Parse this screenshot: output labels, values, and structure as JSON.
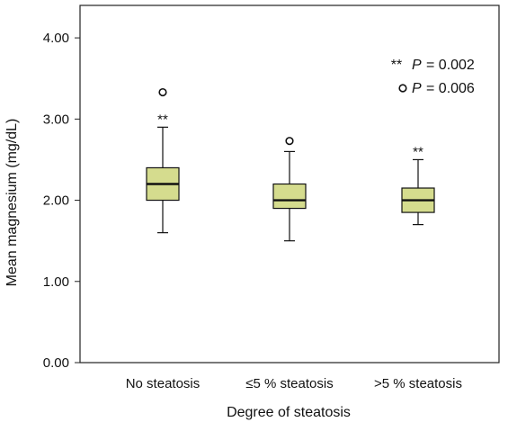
{
  "chart_data": {
    "type": "box",
    "xlabel": "Degree of steatosis",
    "ylabel": "Mean magnesium (mg/dL)",
    "ylim": [
      0,
      4.4
    ],
    "yticks": [
      "0.00",
      "1.00",
      "2.00",
      "3.00",
      "4.00"
    ],
    "ytick_values": [
      0,
      1,
      2,
      3,
      4
    ],
    "grid": false,
    "box_color": "#d5dc8e",
    "categories": [
      "No steatosis",
      "≤5 % steatosis",
      ">5 % steatosis"
    ],
    "boxes": [
      {
        "category": "No steatosis",
        "whisker_low": 1.6,
        "q1": 2.0,
        "median": 2.2,
        "q3": 2.4,
        "whisker_high": 2.9,
        "outliers": [
          3.33
        ],
        "marker": "**"
      },
      {
        "category": "≤5 % steatosis",
        "whisker_low": 1.5,
        "q1": 1.9,
        "median": 2.0,
        "q3": 2.2,
        "whisker_high": 2.6,
        "outliers": [
          2.73
        ],
        "marker": ""
      },
      {
        "category": ">5 % steatosis",
        "whisker_low": 1.7,
        "q1": 1.85,
        "median": 2.0,
        "q3": 2.15,
        "whisker_high": 2.5,
        "outliers": [],
        "marker": "**"
      }
    ],
    "legend": {
      "placement": "top-right",
      "entries": [
        {
          "symbol": "**",
          "p_label": "P",
          "value": "= 0.002"
        },
        {
          "symbol": "o",
          "p_label": "P",
          "value": "= 0.006"
        }
      ]
    }
  }
}
